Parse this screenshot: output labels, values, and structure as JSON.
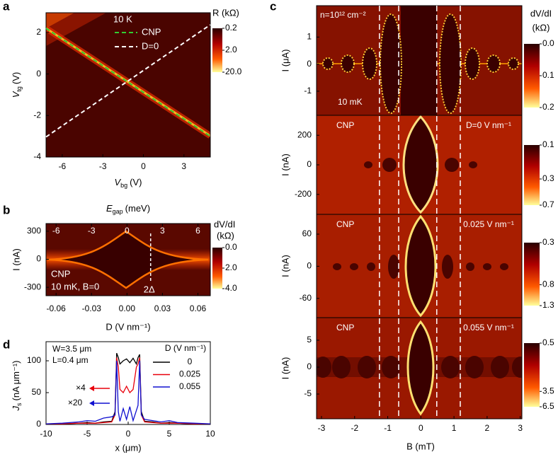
{
  "chart_data": [
    {
      "type": "heatmap",
      "panel_label": "a",
      "xlabel": {
        "symbol": "V",
        "sub": "bg",
        "unit": "(V)"
      },
      "ylabel": {
        "symbol": "V",
        "sub": "tg",
        "unit": "(V)"
      },
      "xlim": [
        -7.2,
        4.95
      ],
      "xticks": [
        -6,
        -3,
        0,
        3
      ],
      "ylim": [
        -4,
        2.95
      ],
      "yticks": [
        -4,
        -2,
        0,
        2
      ],
      "annotation": "10 K",
      "series": [
        {
          "name": "CNP",
          "color": "#33cc33",
          "x": [
            -7.2,
            4.95
          ],
          "values": [
            2.2,
            -3.0
          ]
        },
        {
          "name": "D=0",
          "color": "#ffffff",
          "x": [
            -7.2,
            4.95
          ],
          "values": [
            -3.03,
            2.37
          ]
        }
      ],
      "colorbar": {
        "title": "R (kΩ)",
        "scale": "log",
        "ticks": [
          0.2,
          {
            "value": 2,
            "label": "2.0"
          },
          {
            "value": 20,
            "label": "20.0"
          }
        ]
      }
    },
    {
      "type": "heatmap",
      "panel_label": "b",
      "xlabel": "D (V nm⁻¹)",
      "ylabel": "I (nA)",
      "x2label": {
        "symbol": "E",
        "sub": "gap",
        "unit": "(meV)"
      },
      "xlim": [
        -0.0685,
        0.0705
      ],
      "xticks": [
        -0.06,
        -0.03,
        {
          "value": 0,
          "label": "0.00"
        },
        0.03,
        0.06
      ],
      "x2lim": [
        -6.85,
        7.05
      ],
      "x2ticks": [
        -6,
        -3,
        0,
        3,
        6
      ],
      "ylim": [
        -390,
        382
      ],
      "yticks": [
        -300,
        0,
        300
      ],
      "annotations": [
        "CNP",
        "10 mK, B=0"
      ],
      "marker": {
        "label": "2Δ",
        "x": 0.02
      },
      "colorbar": {
        "title": "dV/dI",
        "unit": "(kΩ)",
        "scale": "linear",
        "ticks": [
          {
            "value": 0,
            "label": "0.0"
          },
          {
            "value": 2,
            "label": "2.0"
          },
          {
            "value": 4,
            "label": "4.0"
          }
        ]
      }
    },
    {
      "type": "heatmap",
      "panel_label": "c",
      "xlabel": "B (mT)",
      "xlim": [
        -3.15,
        3.05
      ],
      "xticks": [
        -3,
        -2,
        -1,
        0,
        1,
        2,
        3
      ],
      "vlines": [
        -1.25,
        -0.67,
        0.48,
        1.19
      ],
      "panels": [
        {
          "ylabel": "I (μA)",
          "ylim": [
            -1.89,
            2.16
          ],
          "yticks": [
            -1,
            0,
            1
          ],
          "annotations": [
            "n=10¹² cm⁻²",
            "10 mK"
          ],
          "colorbar": {
            "title": "dV/dI",
            "unit": "(kΩ)",
            "scale": "linear",
            "ticks": [
              {
                "value": 0,
                "label": "0.0"
              },
              0.1,
              0.2
            ]
          }
        },
        {
          "ylabel": "I (nA)",
          "ylim": [
            -335,
            335
          ],
          "yticks": [
            -200,
            0,
            200
          ],
          "annotations": [
            "CNP",
            "D=0 V nm⁻¹"
          ],
          "colorbar": {
            "scale": "log",
            "ticks": [
              0.1,
              0.3,
              0.7
            ]
          }
        },
        {
          "ylabel": "I (nA)",
          "ylim": [
            -96,
            97
          ],
          "yticks": [
            -60,
            0,
            60
          ],
          "annotations": [
            "CNP",
            "0.025 V nm⁻¹"
          ],
          "colorbar": {
            "scale": "log",
            "ticks": [
              0.3,
              0.8,
              1.3
            ]
          }
        },
        {
          "ylabel": "I (nA)",
          "ylim": [
            -9.6,
            9.2
          ],
          "yticks": [
            -5,
            0,
            5
          ],
          "annotations": [
            "CNP",
            "0.055 V nm⁻¹"
          ],
          "colorbar": {
            "scale": "log",
            "ticks": [
              0.5,
              3.5,
              6.5
            ]
          }
        }
      ]
    },
    {
      "type": "line",
      "panel_label": "d",
      "xlabel": "x (μm)",
      "ylabel": {
        "symbol": "J",
        "sub": "s",
        "unit": "(nA μm⁻¹)"
      },
      "xlim": [
        -10,
        10
      ],
      "xticks": [
        -10,
        -5,
        0,
        5,
        10
      ],
      "ylim": [
        0,
        130
      ],
      "yticks": [
        0,
        50,
        100
      ],
      "annotations": [
        "W=3.5 μm",
        "L=0.4 μm"
      ],
      "legend_title": "D (V nm⁻¹)",
      "x": [
        -10,
        -8,
        -6,
        -5,
        -4,
        -3,
        -2,
        -1.6,
        -1.4,
        -1.2,
        -1,
        -0.6,
        -0.2,
        0.2,
        0.6,
        1,
        1.2,
        1.4,
        1.6,
        2,
        3,
        4,
        5,
        6,
        8,
        10
      ],
      "series": [
        {
          "name": "0",
          "color": "#000000",
          "values": [
            1,
            1,
            2,
            3,
            2,
            4,
            5,
            20,
            112,
            105,
            95,
            100,
            103,
            97,
            104,
            95,
            105,
            110,
            20,
            5,
            4,
            2,
            3,
            2,
            1,
            1
          ]
        },
        {
          "name": "0.025",
          "color": "#e8000b",
          "multiplier": "×4",
          "values": [
            1,
            1,
            2,
            2,
            2,
            3,
            4,
            15,
            105,
            90,
            55,
            50,
            60,
            50,
            55,
            90,
            95,
            105,
            15,
            4,
            3,
            2,
            2,
            2,
            1,
            1
          ]
        },
        {
          "name": "0.055",
          "color": "#1010d0",
          "multiplier": "×20",
          "values": [
            1,
            2,
            4,
            6,
            5,
            10,
            12,
            15,
            100,
            20,
            5,
            25,
            8,
            28,
            6,
            22,
            30,
            100,
            15,
            8,
            6,
            4,
            6,
            3,
            2,
            1
          ]
        }
      ]
    }
  ]
}
